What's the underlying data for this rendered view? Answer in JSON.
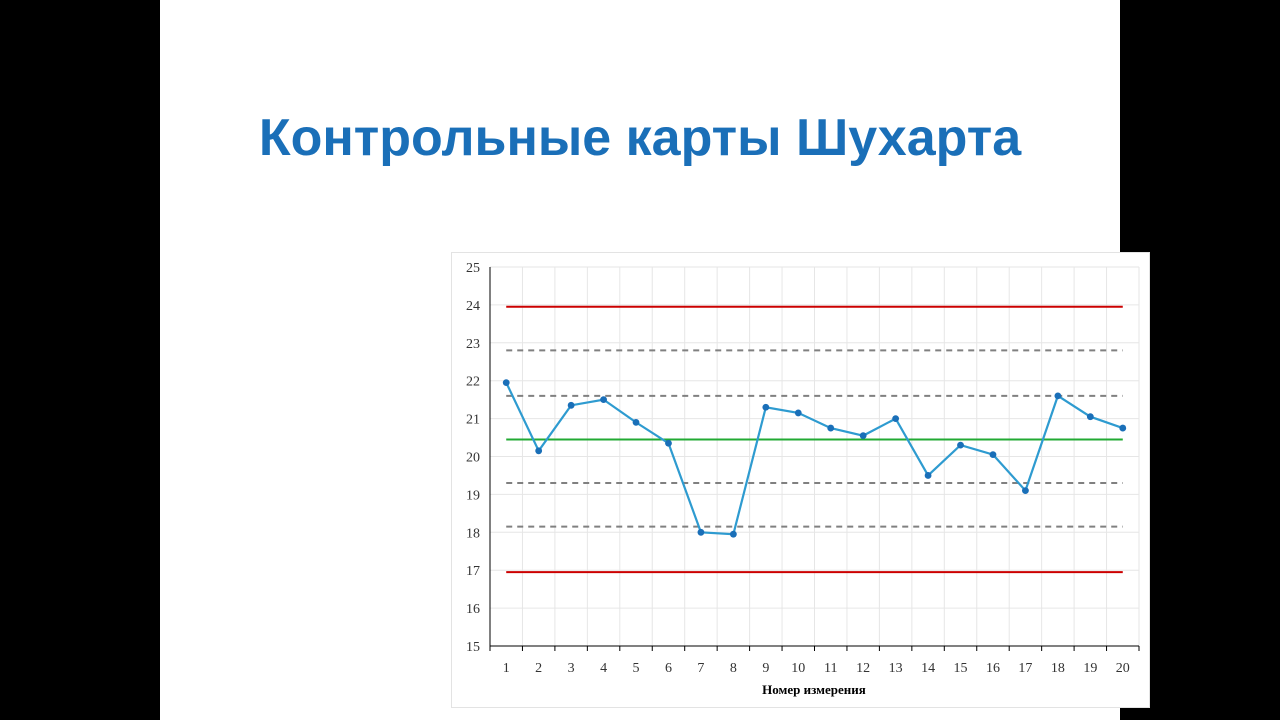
{
  "slide": {
    "title": "Контрольные карты Шухарта"
  },
  "colors": {
    "title": "#1a6fb8",
    "series": "#2e9bd0",
    "marker": "#1a6fb8",
    "control_limit": "#cc0000",
    "center_line": "#22aa33",
    "warning_line": "#808080",
    "grid": "#e6e6e6"
  },
  "chart_data": {
    "type": "line",
    "title": "",
    "xlabel": "Номер измерения",
    "ylabel": "",
    "ylim": [
      15,
      25
    ],
    "grid": true,
    "categories": [
      "1",
      "2",
      "3",
      "4",
      "5",
      "6",
      "7",
      "8",
      "9",
      "10",
      "11",
      "12",
      "13",
      "14",
      "15",
      "16",
      "17",
      "18",
      "19",
      "20"
    ],
    "yticks": [
      "15",
      "16",
      "17",
      "18",
      "19",
      "20",
      "21",
      "22",
      "23",
      "24",
      "25"
    ],
    "series": [
      {
        "name": "",
        "values": [
          21.95,
          20.15,
          21.35,
          21.5,
          20.9,
          20.35,
          18.0,
          17.95,
          21.3,
          21.15,
          20.75,
          20.55,
          21.0,
          19.5,
          20.3,
          20.05,
          19.1,
          21.6,
          21.05,
          20.75
        ]
      }
    ],
    "reference_lines": [
      {
        "kind": "upper-control-limit",
        "value": 23.95
      },
      {
        "kind": "upper-warning-2sigma",
        "value": 22.8
      },
      {
        "kind": "upper-warning-1sigma",
        "value": 21.6
      },
      {
        "kind": "center-line",
        "value": 20.45
      },
      {
        "kind": "lower-warning-1sigma",
        "value": 19.3
      },
      {
        "kind": "lower-warning-2sigma",
        "value": 18.15
      },
      {
        "kind": "lower-control-limit",
        "value": 16.95
      }
    ]
  }
}
